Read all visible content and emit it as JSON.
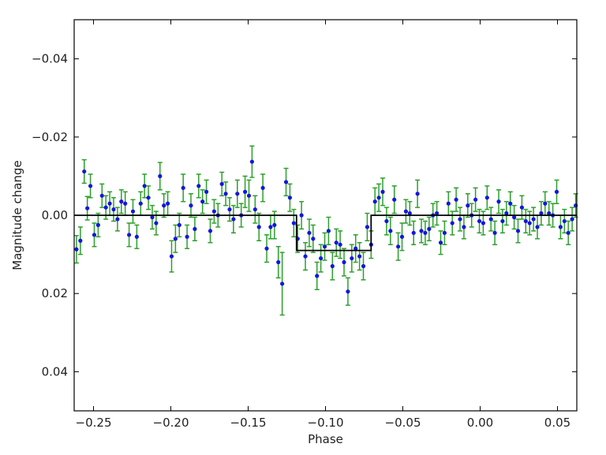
{
  "chart_data": {
    "type": "scatter",
    "title": "",
    "xlabel": "Phase",
    "ylabel": "Magnitude change",
    "xlim": [
      -0.2625,
      0.0625
    ],
    "ylim": [
      0.05,
      -0.05
    ],
    "y_inverted": true,
    "grid": false,
    "legend": "none",
    "x_ticks": [
      -0.25,
      -0.2,
      -0.15,
      -0.1,
      -0.05,
      0.0,
      0.05
    ],
    "x_tick_labels": [
      "−0.25",
      "−0.20",
      "−0.15",
      "−0.10",
      "−0.05",
      "0.00",
      "0.05"
    ],
    "y_ticks": [
      -0.04,
      -0.02,
      0.0,
      0.02,
      0.04
    ],
    "y_tick_labels": [
      "−0.04",
      "−0.02",
      "0.00",
      "0.02",
      "0.04"
    ],
    "colors": {
      "points": "#1515e0",
      "errorbars": "#2ca02c",
      "model": "#000000"
    },
    "model_step": [
      {
        "x": -0.2625,
        "y": 0.0
      },
      {
        "x": -0.1187,
        "y": 0.0
      },
      {
        "x": -0.1187,
        "y": 0.009
      },
      {
        "x": -0.0705,
        "y": 0.009
      },
      {
        "x": -0.0705,
        "y": 0.0
      },
      {
        "x": 0.0625,
        "y": 0.0
      }
    ],
    "points": [
      {
        "x": -0.261,
        "y": 0.0087,
        "err": 0.0035
      },
      {
        "x": -0.2585,
        "y": 0.0065,
        "err": 0.0035
      },
      {
        "x": -0.256,
        "y": -0.0112,
        "err": 0.003
      },
      {
        "x": -0.254,
        "y": -0.0018,
        "err": 0.003
      },
      {
        "x": -0.252,
        "y": -0.0075,
        "err": 0.003
      },
      {
        "x": -0.2495,
        "y": 0.005,
        "err": 0.003
      },
      {
        "x": -0.247,
        "y": 0.0025,
        "err": 0.003
      },
      {
        "x": -0.2445,
        "y": -0.005,
        "err": 0.003
      },
      {
        "x": -0.242,
        "y": -0.002,
        "err": 0.003
      },
      {
        "x": -0.2395,
        "y": -0.003,
        "err": 0.003
      },
      {
        "x": -0.237,
        "y": -0.0015,
        "err": 0.003
      },
      {
        "x": -0.2345,
        "y": 0.001,
        "err": 0.003
      },
      {
        "x": -0.232,
        "y": -0.0035,
        "err": 0.003
      },
      {
        "x": -0.2295,
        "y": -0.003,
        "err": 0.003
      },
      {
        "x": -0.227,
        "y": 0.005,
        "err": 0.003
      },
      {
        "x": -0.2245,
        "y": -0.001,
        "err": 0.003
      },
      {
        "x": -0.222,
        "y": 0.0055,
        "err": 0.003
      },
      {
        "x": -0.2195,
        "y": -0.003,
        "err": 0.003
      },
      {
        "x": -0.217,
        "y": -0.0075,
        "err": 0.003
      },
      {
        "x": -0.2145,
        "y": -0.0045,
        "err": 0.003
      },
      {
        "x": -0.212,
        "y": 0.0005,
        "err": 0.003
      },
      {
        "x": -0.2095,
        "y": 0.002,
        "err": 0.003
      },
      {
        "x": -0.207,
        "y": -0.01,
        "err": 0.0035
      },
      {
        "x": -0.2045,
        "y": -0.0025,
        "err": 0.003
      },
      {
        "x": -0.202,
        "y": -0.003,
        "err": 0.003
      },
      {
        "x": -0.1995,
        "y": 0.0105,
        "err": 0.004
      },
      {
        "x": -0.197,
        "y": 0.006,
        "err": 0.0035
      },
      {
        "x": -0.1945,
        "y": 0.0025,
        "err": 0.003
      },
      {
        "x": -0.192,
        "y": -0.007,
        "err": 0.0035
      },
      {
        "x": -0.1895,
        "y": 0.0055,
        "err": 0.003
      },
      {
        "x": -0.187,
        "y": -0.0025,
        "err": 0.003
      },
      {
        "x": -0.1845,
        "y": 0.0035,
        "err": 0.003
      },
      {
        "x": -0.182,
        "y": -0.0075,
        "err": 0.003
      },
      {
        "x": -0.1795,
        "y": -0.0035,
        "err": 0.003
      },
      {
        "x": -0.177,
        "y": -0.006,
        "err": 0.003
      },
      {
        "x": -0.1745,
        "y": 0.004,
        "err": 0.003
      },
      {
        "x": -0.172,
        "y": -0.001,
        "err": 0.003
      },
      {
        "x": -0.1695,
        "y": 0.0,
        "err": 0.003
      },
      {
        "x": -0.167,
        "y": -0.008,
        "err": 0.003
      },
      {
        "x": -0.1645,
        "y": -0.0055,
        "err": 0.003
      },
      {
        "x": -0.162,
        "y": -0.0015,
        "err": 0.003
      },
      {
        "x": -0.1595,
        "y": 0.001,
        "err": 0.0035
      },
      {
        "x": -0.157,
        "y": -0.0055,
        "err": 0.0035
      },
      {
        "x": -0.1545,
        "y": 0.0,
        "err": 0.003
      },
      {
        "x": -0.152,
        "y": -0.006,
        "err": 0.004
      },
      {
        "x": -0.1495,
        "y": -0.005,
        "err": 0.004
      },
      {
        "x": -0.1475,
        "y": -0.0137,
        "err": 0.004
      },
      {
        "x": -0.1455,
        "y": -0.0015,
        "err": 0.0035
      },
      {
        "x": -0.143,
        "y": 0.003,
        "err": 0.0035
      },
      {
        "x": -0.1405,
        "y": -0.007,
        "err": 0.0035
      },
      {
        "x": -0.138,
        "y": 0.0085,
        "err": 0.0035
      },
      {
        "x": -0.1355,
        "y": 0.003,
        "err": 0.003
      },
      {
        "x": -0.133,
        "y": 0.0025,
        "err": 0.0035
      },
      {
        "x": -0.1305,
        "y": 0.012,
        "err": 0.004
      },
      {
        "x": -0.128,
        "y": 0.0175,
        "err": 0.008
      },
      {
        "x": -0.1255,
        "y": -0.0085,
        "err": 0.0035
      },
      {
        "x": -0.123,
        "y": -0.0045,
        "err": 0.0035
      },
      {
        "x": -0.1205,
        "y": 0.002,
        "err": 0.0035
      },
      {
        "x": -0.118,
        "y": 0.006,
        "err": 0.0035
      },
      {
        "x": -0.1155,
        "y": 0.0,
        "err": 0.0035
      },
      {
        "x": -0.113,
        "y": 0.0105,
        "err": 0.0035
      },
      {
        "x": -0.1105,
        "y": 0.0045,
        "err": 0.0035
      },
      {
        "x": -0.108,
        "y": 0.006,
        "err": 0.0035
      },
      {
        "x": -0.1055,
        "y": 0.0155,
        "err": 0.0035
      },
      {
        "x": -0.103,
        "y": 0.011,
        "err": 0.0035
      },
      {
        "x": -0.1005,
        "y": 0.008,
        "err": 0.0035
      },
      {
        "x": -0.098,
        "y": 0.004,
        "err": 0.0035
      },
      {
        "x": -0.0955,
        "y": 0.013,
        "err": 0.0035
      },
      {
        "x": -0.093,
        "y": 0.007,
        "err": 0.0035
      },
      {
        "x": -0.0905,
        "y": 0.0075,
        "err": 0.0035
      },
      {
        "x": -0.088,
        "y": 0.012,
        "err": 0.0035
      },
      {
        "x": -0.0855,
        "y": 0.0195,
        "err": 0.0035
      },
      {
        "x": -0.083,
        "y": 0.011,
        "err": 0.0035
      },
      {
        "x": -0.0805,
        "y": 0.0085,
        "err": 0.0035
      },
      {
        "x": -0.078,
        "y": 0.0105,
        "err": 0.0035
      },
      {
        "x": -0.0755,
        "y": 0.013,
        "err": 0.0035
      },
      {
        "x": -0.073,
        "y": 0.003,
        "err": 0.0035
      },
      {
        "x": -0.0705,
        "y": 0.0075,
        "err": 0.0035
      },
      {
        "x": -0.068,
        "y": -0.0035,
        "err": 0.0035
      },
      {
        "x": -0.0655,
        "y": -0.0045,
        "err": 0.0035
      },
      {
        "x": -0.063,
        "y": -0.006,
        "err": 0.0035
      },
      {
        "x": -0.0605,
        "y": 0.0015,
        "err": 0.0035
      },
      {
        "x": -0.058,
        "y": 0.004,
        "err": 0.0035
      },
      {
        "x": -0.0555,
        "y": -0.004,
        "err": 0.0035
      },
      {
        "x": -0.053,
        "y": 0.008,
        "err": 0.0035
      },
      {
        "x": -0.0505,
        "y": 0.0055,
        "err": 0.0035
      },
      {
        "x": -0.048,
        "y": -0.001,
        "err": 0.003
      },
      {
        "x": -0.0455,
        "y": -0.0005,
        "err": 0.003
      },
      {
        "x": -0.043,
        "y": 0.0045,
        "err": 0.003
      },
      {
        "x": -0.0405,
        "y": -0.0055,
        "err": 0.0035
      },
      {
        "x": -0.038,
        "y": 0.004,
        "err": 0.003
      },
      {
        "x": -0.0355,
        "y": 0.0045,
        "err": 0.003
      },
      {
        "x": -0.033,
        "y": 0.0035,
        "err": 0.003
      },
      {
        "x": -0.0305,
        "y": 0.0,
        "err": 0.003
      },
      {
        "x": -0.028,
        "y": -0.0005,
        "err": 0.003
      },
      {
        "x": -0.0255,
        "y": 0.007,
        "err": 0.003
      },
      {
        "x": -0.023,
        "y": 0.0045,
        "err": 0.003
      },
      {
        "x": -0.0205,
        "y": -0.003,
        "err": 0.003
      },
      {
        "x": -0.018,
        "y": 0.002,
        "err": 0.003
      },
      {
        "x": -0.0155,
        "y": -0.004,
        "err": 0.003
      },
      {
        "x": -0.013,
        "y": 0.001,
        "err": 0.003
      },
      {
        "x": -0.0105,
        "y": 0.003,
        "err": 0.003
      },
      {
        "x": -0.008,
        "y": -0.0025,
        "err": 0.003
      },
      {
        "x": -0.0055,
        "y": 0.0,
        "err": 0.003
      },
      {
        "x": -0.003,
        "y": -0.004,
        "err": 0.003
      },
      {
        "x": -0.0005,
        "y": 0.0015,
        "err": 0.003
      },
      {
        "x": 0.002,
        "y": 0.002,
        "err": 0.003
      },
      {
        "x": 0.0045,
        "y": -0.0045,
        "err": 0.003
      },
      {
        "x": 0.007,
        "y": 0.001,
        "err": 0.003
      },
      {
        "x": 0.0095,
        "y": 0.0045,
        "err": 0.003
      },
      {
        "x": 0.012,
        "y": -0.0035,
        "err": 0.003
      },
      {
        "x": 0.0145,
        "y": 0.0015,
        "err": 0.003
      },
      {
        "x": 0.017,
        "y": -0.0005,
        "err": 0.003
      },
      {
        "x": 0.0195,
        "y": -0.003,
        "err": 0.003
      },
      {
        "x": 0.022,
        "y": 0.0005,
        "err": 0.003
      },
      {
        "x": 0.0245,
        "y": 0.004,
        "err": 0.003
      },
      {
        "x": 0.027,
        "y": -0.002,
        "err": 0.003
      },
      {
        "x": 0.0295,
        "y": 0.0015,
        "err": 0.003
      },
      {
        "x": 0.032,
        "y": 0.002,
        "err": 0.003
      },
      {
        "x": 0.0345,
        "y": 0.001,
        "err": 0.003
      },
      {
        "x": 0.037,
        "y": 0.003,
        "err": 0.003
      },
      {
        "x": 0.0395,
        "y": -0.0005,
        "err": 0.003
      },
      {
        "x": 0.042,
        "y": -0.003,
        "err": 0.003
      },
      {
        "x": 0.0445,
        "y": -0.0005,
        "err": 0.003
      },
      {
        "x": 0.047,
        "y": 0.0,
        "err": 0.003
      },
      {
        "x": 0.0495,
        "y": -0.006,
        "err": 0.003
      },
      {
        "x": 0.052,
        "y": 0.003,
        "err": 0.003
      },
      {
        "x": 0.0545,
        "y": 0.0015,
        "err": 0.003
      },
      {
        "x": 0.057,
        "y": 0.0045,
        "err": 0.003
      },
      {
        "x": 0.0595,
        "y": 0.001,
        "err": 0.003
      },
      {
        "x": 0.0618,
        "y": -0.0025,
        "err": 0.003
      }
    ]
  }
}
